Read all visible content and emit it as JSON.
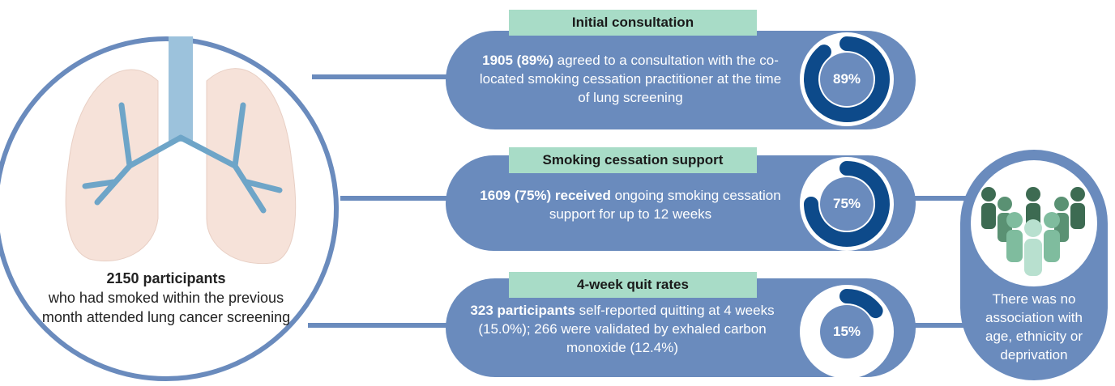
{
  "participants": {
    "bold": "2150 participants",
    "text": "who had smoked within the previous month attended lung cancer screening"
  },
  "stages": [
    {
      "title": "Initial consultation",
      "bold": "1905 (89%)",
      "text": "agreed to a consultation with the co-located smoking cessation practitioner at the time of lung screening",
      "percent": {
        "value": 89,
        "label": "89%"
      }
    },
    {
      "title": "Smoking cessation support",
      "bold": "1609 (75%) received",
      "text": "ongoing smoking cessation support for up to 12 weeks",
      "percent": {
        "value": 75,
        "label": "75%"
      }
    },
    {
      "title": "4-week quit rates",
      "bold": "323 participants",
      "text": "self-reported quitting at 4 weeks (15.0%); 266 were validated by exhaled carbon monoxide (12.4%)",
      "percent": {
        "value": 15,
        "label": "15%"
      }
    }
  ],
  "note": "There was no association with age, ethnicity or deprivation"
}
